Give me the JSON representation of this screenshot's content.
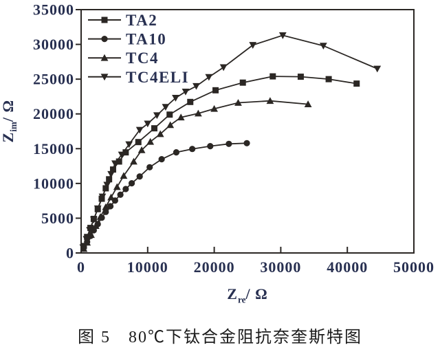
{
  "figure": {
    "caption": "图 5　80℃下钛合金阻抗奈奎斯特图"
  },
  "axes": {
    "x": {
      "base": "Z",
      "sub": "re",
      "unit": "/ Ω"
    },
    "y": {
      "base": "Z",
      "sub": "im",
      "unit": "/ Ω"
    }
  },
  "colors": {
    "ink": "#2b2724",
    "label_text": "#283051",
    "caption_text": "#1c1c1c",
    "background": "#ffffff"
  },
  "chart_data": {
    "type": "line",
    "title": "",
    "xlabel": "Zre/ Ω",
    "ylabel": "Zim/ Ω",
    "xlim": [
      0,
      50000
    ],
    "ylim": [
      0,
      35000
    ],
    "xticks": [
      0,
      10000,
      20000,
      30000,
      40000,
      50000
    ],
    "yticks": [
      0,
      5000,
      10000,
      15000,
      20000,
      25000,
      30000,
      35000
    ],
    "grid": false,
    "legend_position": "top-left",
    "series": [
      {
        "name": "TA2",
        "marker": "square",
        "points": [
          [
            400,
            1000
          ],
          [
            900,
            2300
          ],
          [
            1400,
            3600
          ],
          [
            1900,
            4900
          ],
          [
            2500,
            6300
          ],
          [
            3100,
            7800
          ],
          [
            3700,
            9300
          ],
          [
            4200,
            10600
          ],
          [
            4800,
            12000
          ],
          [
            5700,
            13150
          ],
          [
            6700,
            14470
          ],
          [
            8600,
            15950
          ],
          [
            11000,
            17930
          ],
          [
            13300,
            19900
          ],
          [
            16400,
            21720
          ],
          [
            20200,
            23400
          ],
          [
            24300,
            24500
          ],
          [
            28800,
            25400
          ],
          [
            33000,
            25350
          ],
          [
            37200,
            25000
          ],
          [
            41400,
            24360
          ]
        ]
      },
      {
        "name": "TA10",
        "marker": "circle",
        "points": [
          [
            400,
            800
          ],
          [
            900,
            1600
          ],
          [
            1400,
            2440
          ],
          [
            1900,
            3260
          ],
          [
            2500,
            4150
          ],
          [
            3100,
            5070
          ],
          [
            3700,
            5900
          ],
          [
            4400,
            6720
          ],
          [
            5100,
            7540
          ],
          [
            5900,
            8380
          ],
          [
            6700,
            9200
          ],
          [
            7600,
            10020
          ],
          [
            8800,
            11000
          ],
          [
            10300,
            12330
          ],
          [
            12100,
            13480
          ],
          [
            14300,
            14470
          ],
          [
            16700,
            14960
          ],
          [
            19400,
            15360
          ],
          [
            22200,
            15690
          ],
          [
            24900,
            15790
          ]
        ]
      },
      {
        "name": "TC4",
        "marker": "triangle-up",
        "points": [
          [
            400,
            600
          ],
          [
            900,
            1500
          ],
          [
            1500,
            2600
          ],
          [
            2200,
            3900
          ],
          [
            2900,
            5200
          ],
          [
            3700,
            6600
          ],
          [
            4500,
            8000
          ],
          [
            5400,
            9500
          ],
          [
            6400,
            11100
          ],
          [
            7900,
            13150
          ],
          [
            9100,
            14800
          ],
          [
            10400,
            16000
          ],
          [
            11900,
            17110
          ],
          [
            13400,
            18400
          ],
          [
            15000,
            19510
          ],
          [
            17600,
            20070
          ],
          [
            20000,
            20740
          ],
          [
            23600,
            21600
          ],
          [
            28400,
            21880
          ],
          [
            34100,
            21400
          ]
        ]
      },
      {
        "name": "TC4ELI",
        "marker": "triangle-down",
        "points": [
          [
            300,
            800
          ],
          [
            800,
            2000
          ],
          [
            1300,
            3300
          ],
          [
            1900,
            4800
          ],
          [
            2500,
            6400
          ],
          [
            3200,
            8100
          ],
          [
            3900,
            9800
          ],
          [
            4500,
            11340
          ],
          [
            5100,
            12880
          ],
          [
            6100,
            14140
          ],
          [
            7200,
            15620
          ],
          [
            8800,
            17700
          ],
          [
            10000,
            18600
          ],
          [
            11400,
            19800
          ],
          [
            12700,
            21000
          ],
          [
            14200,
            22300
          ],
          [
            15700,
            23200
          ],
          [
            17300,
            24000
          ],
          [
            19200,
            25300
          ],
          [
            21400,
            26700
          ],
          [
            25800,
            29900
          ],
          [
            30300,
            31300
          ],
          [
            36400,
            29800
          ],
          [
            44500,
            26500
          ]
        ]
      }
    ]
  }
}
